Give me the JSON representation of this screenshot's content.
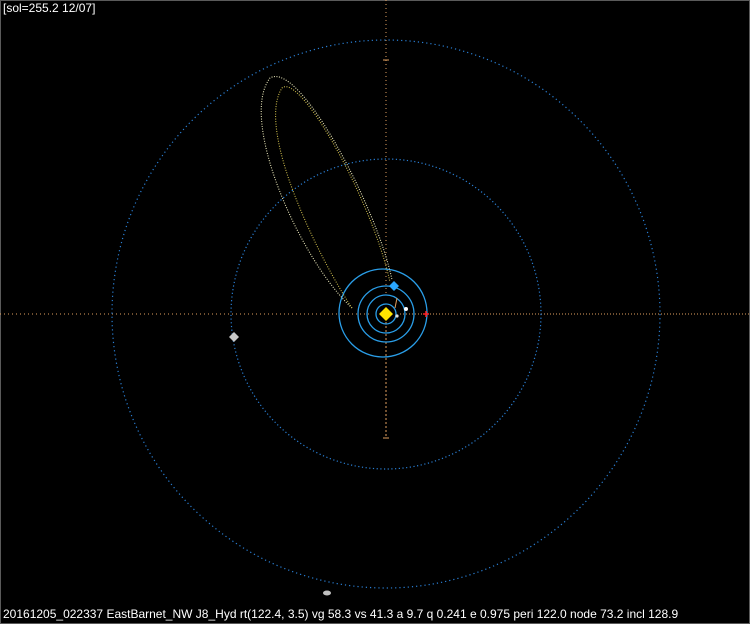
{
  "header": {
    "sol_label": "[sol=255.2 12/07]"
  },
  "footer": {
    "status_line": "20161205_022337 EastBarnet_NW J8_Hyd rt(122.4, 3.5) vg 58.3 vs 41.3 a 9.7 q 0.241 e 0.975 peri 122.0 node 73.2 incl 128.9"
  },
  "colors": {
    "background": "#000000",
    "planet_orbit": "#2a7fd4",
    "meteoroid_orbit": "#d8d48a",
    "sun": "#ffe400",
    "axis_horizontal": "#e0a060",
    "axis_vertical": "#e0a060",
    "marker_red": "#ff2020"
  },
  "icons": {
    "sun": "sun-icon",
    "earth": "earth-icon",
    "planet": "planet-icon",
    "red_cross": "red-cross-icon"
  },
  "orbit": {
    "a": 9.7,
    "q": 0.241,
    "e": 0.975,
    "peri": 122.0,
    "node": 73.2,
    "incl": 128.9
  }
}
